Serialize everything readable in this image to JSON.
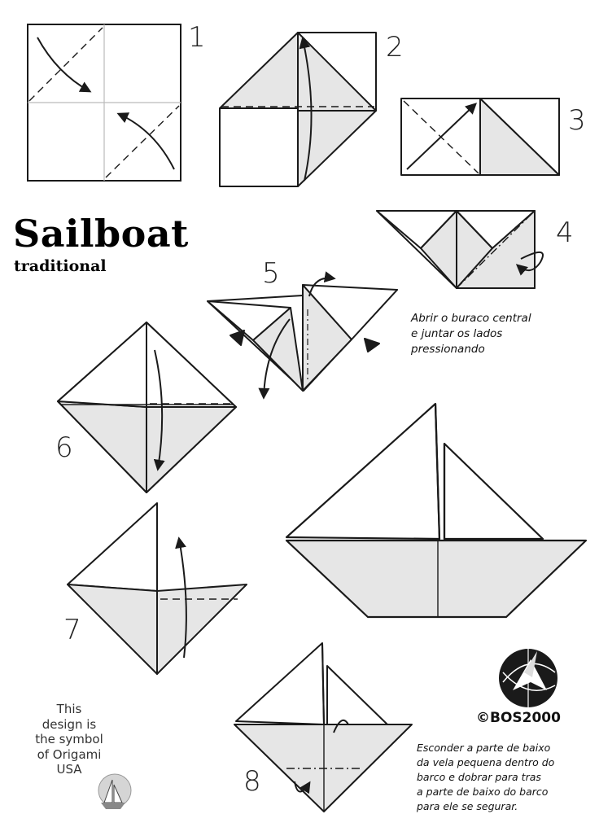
{
  "title": "Sailboat",
  "subtitle": "traditional",
  "steps": [
    "1",
    "2",
    "3",
    "4",
    "5",
    "6",
    "7",
    "8"
  ],
  "notes": {
    "step5": [
      "Abrir o buraco central",
      "e juntar os lados",
      "pressionando"
    ],
    "step8": [
      "Esconder a parte de baixo",
      "da vela pequena dentro do",
      "barco e dobrar para tras",
      "a parte de baixo do barco",
      "para ele se segurar."
    ]
  },
  "symbol_note": [
    "This",
    "design is",
    "the symbol",
    "of Origami",
    "USA"
  ],
  "copyright": "©BOS2000",
  "colors": {
    "line": "#1a1a1a",
    "shade": "#e6e6e6",
    "paper": "#ffffff"
  },
  "icons": [
    "fold-arrow-icon",
    "push-triangle-icon",
    "origami-usa-logo-icon",
    "sailboat-emblem-icon"
  ]
}
